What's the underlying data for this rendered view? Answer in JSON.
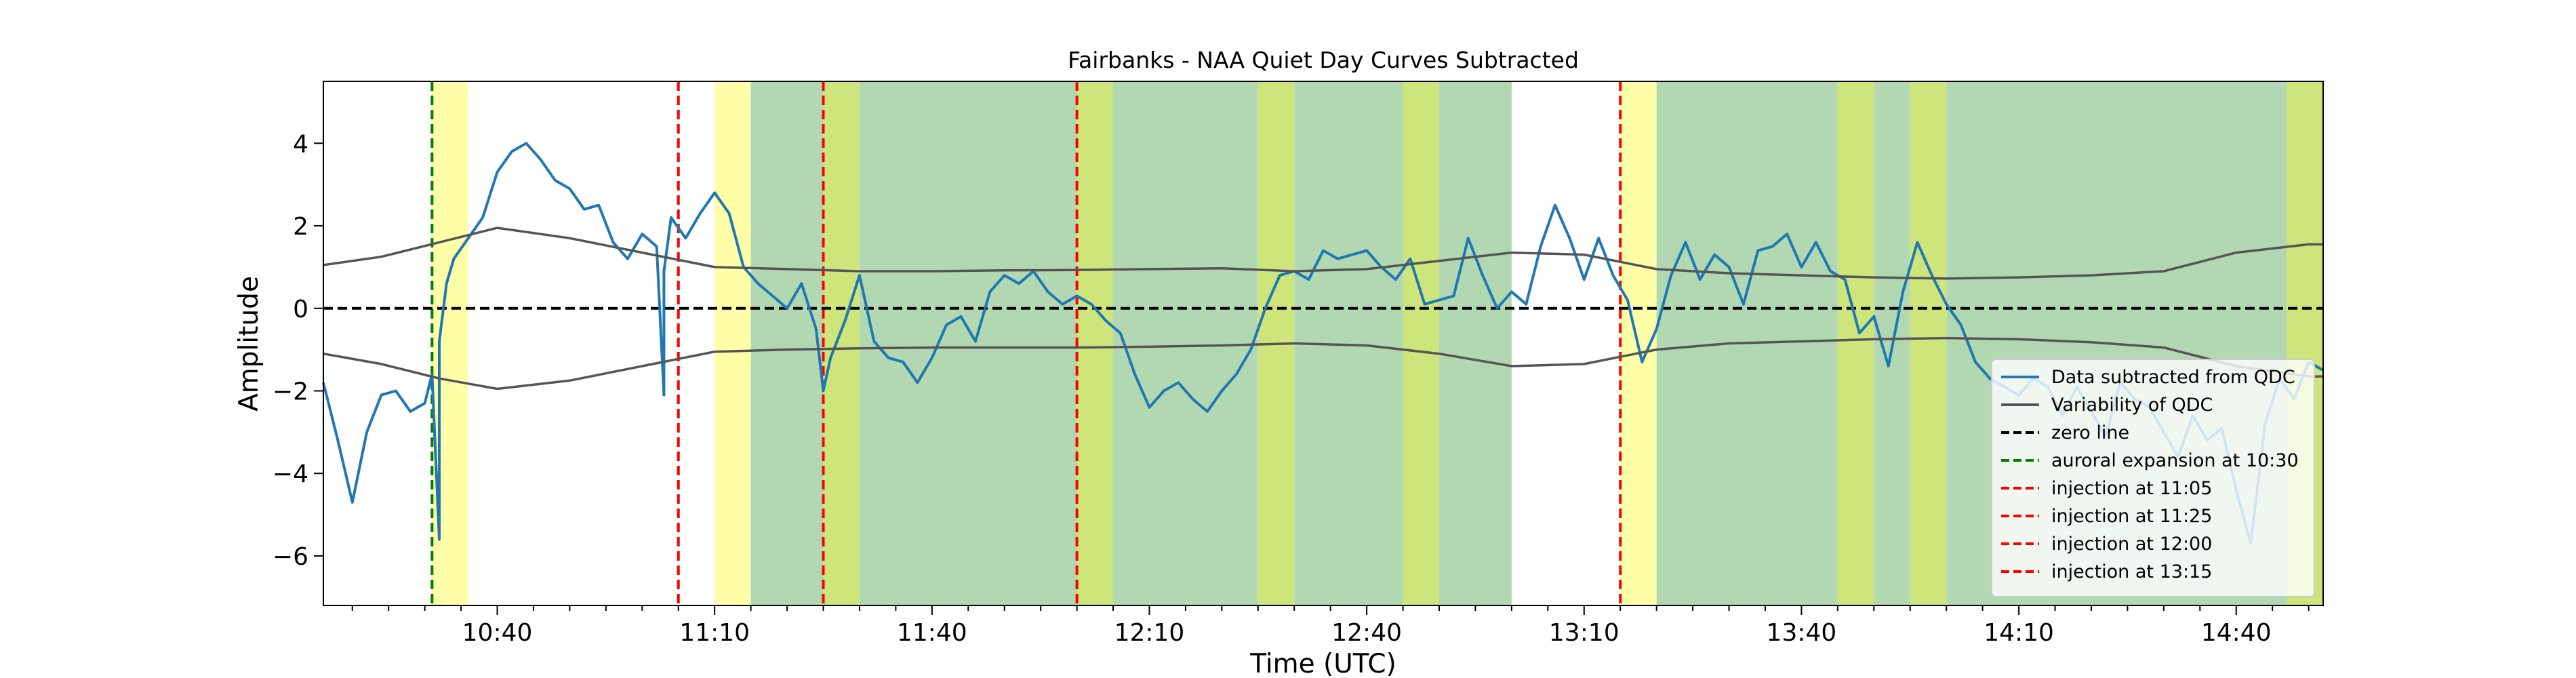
{
  "chart_data": {
    "type": "line",
    "title": "Fairbanks - NAA Quiet Day Curves Subtracted",
    "xlabel": "Time (UTC)",
    "ylabel": "Amplitude",
    "xlim": [
      "10:16",
      "14:52"
    ],
    "ylim": [
      -7.2,
      5.5
    ],
    "x_ticks": [
      "10:40",
      "11:10",
      "11:40",
      "12:10",
      "12:40",
      "13:10",
      "13:40",
      "14:10",
      "14:40"
    ],
    "y_ticks": [
      -6,
      -4,
      -2,
      0,
      2,
      4
    ],
    "grid": false,
    "legend_position": "lower-right",
    "colors": {
      "data": "#1f77b4",
      "qdc": "#555555",
      "zero": "#000000",
      "auroral": "#008000",
      "injection": "#ff0000",
      "green_band": "#b2d8b2",
      "yellow_band": "#ffffa8",
      "olive_band": "#cde57a"
    },
    "shaded_regions": [
      {
        "start": "10:31",
        "end": "10:36",
        "color": "yellow"
      },
      {
        "start": "11:10",
        "end": "11:15",
        "color": "yellow"
      },
      {
        "start": "11:15",
        "end": "11:25",
        "color": "green"
      },
      {
        "start": "11:25",
        "end": "11:30",
        "color": "olive"
      },
      {
        "start": "11:30",
        "end": "12:00",
        "color": "green"
      },
      {
        "start": "12:00",
        "end": "12:05",
        "color": "olive"
      },
      {
        "start": "12:05",
        "end": "12:25",
        "color": "green"
      },
      {
        "start": "12:25",
        "end": "12:30",
        "color": "olive"
      },
      {
        "start": "12:30",
        "end": "12:45",
        "color": "green"
      },
      {
        "start": "12:45",
        "end": "12:50",
        "color": "olive"
      },
      {
        "start": "12:50",
        "end": "13:00",
        "color": "green"
      },
      {
        "start": "13:15",
        "end": "13:20",
        "color": "yellow"
      },
      {
        "start": "13:20",
        "end": "13:45",
        "color": "green"
      },
      {
        "start": "13:45",
        "end": "13:50",
        "color": "olive"
      },
      {
        "start": "13:50",
        "end": "13:55",
        "color": "green"
      },
      {
        "start": "13:55",
        "end": "14:00",
        "color": "olive"
      },
      {
        "start": "14:00",
        "end": "14:47",
        "color": "green"
      },
      {
        "start": "14:47",
        "end": "14:52",
        "color": "olive"
      }
    ],
    "vertical_lines": [
      {
        "time": "10:31",
        "label": "auroral expansion at 10:30",
        "color": "green"
      },
      {
        "time": "11:05",
        "label": "injection at 11:05",
        "color": "red"
      },
      {
        "time": "11:25",
        "label": "injection at 11:25",
        "color": "red"
      },
      {
        "time": "12:00",
        "label": "injection at 12:00",
        "color": "red"
      },
      {
        "time": "13:15",
        "label": "injection at 13:15",
        "color": "red"
      }
    ],
    "series": [
      {
        "name": "Data subtracted from QDC",
        "color": "data",
        "x": [
          "10:16",
          "10:18",
          "10:20",
          "10:22",
          "10:24",
          "10:26",
          "10:28",
          "10:30",
          "10:31",
          "10:32",
          "10:32",
          "10:33",
          "10:34",
          "10:36",
          "10:38",
          "10:40",
          "10:42",
          "10:44",
          "10:46",
          "10:48",
          "10:50",
          "10:52",
          "10:54",
          "10:56",
          "10:58",
          "11:00",
          "11:02",
          "11:03",
          "11:03",
          "11:04",
          "11:06",
          "11:08",
          "11:10",
          "11:12",
          "11:14",
          "11:16",
          "11:18",
          "11:20",
          "11:22",
          "11:24",
          "11:25",
          "11:26",
          "11:28",
          "11:30",
          "11:32",
          "11:34",
          "11:36",
          "11:38",
          "11:40",
          "11:42",
          "11:44",
          "11:46",
          "11:48",
          "11:50",
          "11:52",
          "11:54",
          "11:56",
          "11:58",
          "12:00",
          "12:02",
          "12:04",
          "12:06",
          "12:08",
          "12:10",
          "12:12",
          "12:14",
          "12:16",
          "12:18",
          "12:20",
          "12:22",
          "12:24",
          "12:26",
          "12:28",
          "12:30",
          "12:32",
          "12:34",
          "12:36",
          "12:38",
          "12:40",
          "12:42",
          "12:44",
          "12:46",
          "12:48",
          "12:50",
          "12:52",
          "12:54",
          "12:56",
          "12:58",
          "13:00",
          "13:02",
          "13:04",
          "13:06",
          "13:08",
          "13:10",
          "13:12",
          "13:14",
          "13:16",
          "13:18",
          "13:20",
          "13:22",
          "13:24",
          "13:26",
          "13:28",
          "13:30",
          "13:32",
          "13:34",
          "13:36",
          "13:38",
          "13:40",
          "13:42",
          "13:44",
          "13:46",
          "13:48",
          "13:50",
          "13:52",
          "13:54",
          "13:56",
          "13:58",
          "14:00",
          "14:02",
          "14:04",
          "14:06",
          "14:08",
          "14:10",
          "14:12",
          "14:14",
          "14:16",
          "14:18",
          "14:20",
          "14:22",
          "14:24",
          "14:26",
          "14:28",
          "14:30",
          "14:32",
          "14:34",
          "14:36",
          "14:38",
          "14:40",
          "14:42",
          "14:44",
          "14:46",
          "14:48",
          "14:50",
          "14:52"
        ],
        "y": [
          -1.8,
          -3.2,
          -4.7,
          -3.0,
          -2.1,
          -2.0,
          -2.5,
          -2.3,
          -1.6,
          -5.6,
          -0.8,
          0.6,
          1.2,
          1.7,
          2.2,
          3.3,
          3.8,
          4.0,
          3.6,
          3.1,
          2.9,
          2.4,
          2.5,
          1.6,
          1.2,
          1.8,
          1.5,
          -2.1,
          0.9,
          2.2,
          1.7,
          2.3,
          2.8,
          2.3,
          1.0,
          0.6,
          0.3,
          0.0,
          0.6,
          -0.5,
          -2.0,
          -1.2,
          -0.3,
          0.8,
          -0.8,
          -1.2,
          -1.3,
          -1.8,
          -1.2,
          -0.4,
          -0.2,
          -0.8,
          0.4,
          0.8,
          0.6,
          0.9,
          0.4,
          0.1,
          0.3,
          0.1,
          -0.3,
          -0.6,
          -1.6,
          -2.4,
          -2.0,
          -1.8,
          -2.2,
          -2.5,
          -2.0,
          -1.6,
          -1.0,
          0.0,
          0.8,
          0.9,
          0.7,
          1.4,
          1.2,
          1.3,
          1.4,
          1.0,
          0.7,
          1.2,
          0.1,
          0.2,
          0.3,
          1.7,
          0.8,
          0.0,
          0.4,
          0.1,
          1.5,
          2.5,
          1.7,
          0.7,
          1.7,
          0.8,
          0.2,
          -1.3,
          -0.5,
          0.8,
          1.6,
          0.7,
          1.3,
          1.0,
          0.1,
          1.4,
          1.5,
          1.8,
          1.0,
          1.6,
          0.9,
          0.7,
          -0.6,
          -0.2,
          -1.4,
          0.4,
          1.6,
          0.8,
          0.1,
          -0.4,
          -1.3,
          -1.7,
          -1.9,
          -2.1,
          -1.7,
          -1.9,
          -2.6,
          -1.9,
          -2.5,
          -3.1,
          -1.8,
          -2.2,
          -2.4,
          -3.0,
          -3.6,
          -2.6,
          -3.2,
          -2.9,
          -4.4,
          -5.7,
          -2.8,
          -1.7,
          -2.2,
          -1.3,
          -1.5
        ]
      },
      {
        "name": "Variability of QDC",
        "color": "qdc",
        "x": [
          "10:16",
          "10:24",
          "10:32",
          "10:40",
          "10:50",
          "11:00",
          "11:10",
          "11:20",
          "11:30",
          "11:40",
          "11:50",
          "12:00",
          "12:10",
          "12:20",
          "12:30",
          "12:40",
          "12:50",
          "13:00",
          "13:10",
          "13:20",
          "13:30",
          "13:40",
          "13:50",
          "14:00",
          "14:10",
          "14:20",
          "14:30",
          "14:40",
          "14:50",
          "14:52"
        ],
        "y": [
          1.05,
          1.25,
          1.6,
          1.95,
          1.7,
          1.35,
          1.0,
          0.95,
          0.9,
          0.9,
          0.92,
          0.93,
          0.95,
          0.97,
          0.9,
          0.95,
          1.15,
          1.35,
          1.3,
          0.95,
          0.85,
          0.8,
          0.75,
          0.72,
          0.75,
          0.8,
          0.9,
          1.35,
          1.55,
          1.55
        ]
      },
      {
        "name": "Variability of QDC",
        "color": "qdc",
        "x": [
          "10:16",
          "10:24",
          "10:32",
          "10:40",
          "10:50",
          "11:00",
          "11:10",
          "11:20",
          "11:30",
          "11:40",
          "11:50",
          "12:00",
          "12:10",
          "12:20",
          "12:30",
          "12:40",
          "12:50",
          "13:00",
          "13:10",
          "13:20",
          "13:30",
          "13:40",
          "13:50",
          "14:00",
          "14:10",
          "14:20",
          "14:30",
          "14:40",
          "14:50",
          "14:52"
        ],
        "y": [
          -1.1,
          -1.35,
          -1.7,
          -1.95,
          -1.75,
          -1.4,
          -1.05,
          -1.0,
          -0.97,
          -0.95,
          -0.95,
          -0.95,
          -0.93,
          -0.9,
          -0.85,
          -0.9,
          -1.1,
          -1.4,
          -1.35,
          -1.0,
          -0.85,
          -0.8,
          -0.75,
          -0.72,
          -0.75,
          -0.82,
          -0.95,
          -1.4,
          -1.65,
          -1.65
        ]
      }
    ],
    "legend": [
      {
        "label": "Data subtracted from QDC",
        "color": "data",
        "dash": "solid"
      },
      {
        "label": "Variability of QDC",
        "color": "qdc",
        "dash": "solid"
      },
      {
        "label": "zero line",
        "color": "zero",
        "dash": "dashed"
      },
      {
        "label": "auroral expansion at 10:30",
        "color": "auroral",
        "dash": "dashed"
      },
      {
        "label": "injection at 11:05",
        "color": "injection",
        "dash": "dashed"
      },
      {
        "label": "injection at 11:25",
        "color": "injection",
        "dash": "dashed"
      },
      {
        "label": "injection at 12:00",
        "color": "injection",
        "dash": "dashed"
      },
      {
        "label": "injection at 13:15",
        "color": "injection",
        "dash": "dashed"
      }
    ]
  }
}
